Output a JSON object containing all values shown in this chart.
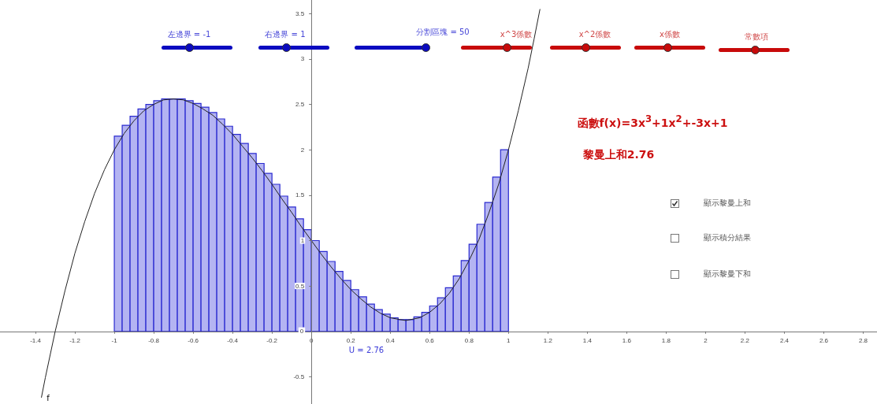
{
  "chart_data": {
    "type": "histogram",
    "xlim": [
      -1.58,
      2.87
    ],
    "ylim": [
      -0.8,
      3.65
    ],
    "xticks": [
      -1.4,
      -1.2,
      -1,
      -0.8,
      -0.6,
      -0.4,
      -0.2,
      0,
      0.2,
      0.4,
      0.6,
      0.8,
      1,
      1.2,
      1.4,
      1.6,
      1.8,
      2,
      2.2,
      2.4,
      2.6,
      2.8
    ],
    "yticks": [
      -0.5,
      0,
      0.5,
      1,
      1.5,
      2,
      2.5,
      3,
      3.5
    ],
    "series": [
      {
        "color": "#b4b4f2",
        "bins": [
          -1,
          -0.96,
          -0.92,
          -0.88,
          -0.84,
          -0.8,
          -0.76,
          -0.72,
          -0.68,
          -0.64,
          -0.6,
          -0.56,
          -0.52,
          -0.48,
          -0.44,
          -0.4,
          -0.36,
          -0.32,
          -0.28,
          -0.24,
          -0.2,
          -0.16,
          -0.12,
          -0.08,
          -0.04,
          0,
          0.04,
          0.08,
          0.12,
          0.16,
          0.2,
          0.24,
          0.28,
          0.32,
          0.36,
          0.4,
          0.44,
          0.48,
          0.52,
          0.56,
          0.6,
          0.64,
          0.68,
          0.72,
          0.76,
          0.8,
          0.84,
          0.88,
          0.92,
          0.96,
          1
        ],
        "values": [
          2.15,
          2.27,
          2.37,
          2.45,
          2.5,
          2.54,
          2.56,
          2.56,
          2.56,
          2.54,
          2.51,
          2.47,
          2.41,
          2.34,
          2.26,
          2.17,
          2.07,
          1.96,
          1.85,
          1.74,
          1.62,
          1.49,
          1.37,
          1.24,
          1.12,
          1,
          0.88,
          0.77,
          0.66,
          0.56,
          0.46,
          0.38,
          0.3,
          0.24,
          0.19,
          0.15,
          0.13,
          0.13,
          0.16,
          0.21,
          0.28,
          0.37,
          0.48,
          0.61,
          0.78,
          0.96,
          1.18,
          1.42,
          1.7,
          2
        ]
      },
      {
        "type": "line",
        "color": "#222222",
        "x": [
          -1.37,
          -1.35,
          -1.3,
          -1.25,
          -1.2,
          -1.15,
          -1.1,
          -1.05,
          -1,
          -0.95,
          -0.9,
          -0.85,
          -0.8,
          -0.75,
          -0.7,
          -0.65,
          -0.6,
          -0.55,
          -0.5,
          -0.45,
          -0.4,
          -0.35,
          -0.3,
          -0.25,
          -0.2,
          -0.15,
          -0.1,
          -0.05,
          0,
          0.05,
          0.1,
          0.15,
          0.2,
          0.25,
          0.3,
          0.35,
          0.4,
          0.45,
          0.48,
          0.55,
          0.6,
          0.65,
          0.7,
          0.75,
          0.8,
          0.85,
          0.9,
          0.95,
          1,
          1.05,
          1.1,
          1.13,
          1.16
        ],
        "values": [
          -0.73,
          -0.51,
          0,
          0.45,
          0.86,
          1.21,
          1.52,
          1.78,
          2,
          2.18,
          2.32,
          2.43,
          2.5,
          2.55,
          2.56,
          2.55,
          2.51,
          2.45,
          2.38,
          2.28,
          2.17,
          2.04,
          1.91,
          1.77,
          1.62,
          1.46,
          1.31,
          1.15,
          1,
          0.85,
          0.71,
          0.58,
          0.46,
          0.36,
          0.27,
          0.2,
          0.15,
          0.13,
          0.12,
          0.15,
          0.21,
          0.3,
          0.42,
          0.58,
          0.78,
          1.01,
          1.3,
          1.62,
          2,
          2.43,
          2.9,
          3.22,
          3.55
        ]
      }
    ],
    "annotations": [
      "左邊界 = -1",
      "右邊界 = 1",
      "分割區塊 = 50",
      "x^3係數",
      "x^2係數",
      "x係數",
      "常數項",
      "函數f(x)=3x$^{3}$+1x$^{2}$+-3x+1",
      "黎曼上和2.76",
      "顯示黎曼上和",
      "顯示積分結果",
      "顯示黎曼下和",
      "U = 2.76",
      "f"
    ]
  }
}
